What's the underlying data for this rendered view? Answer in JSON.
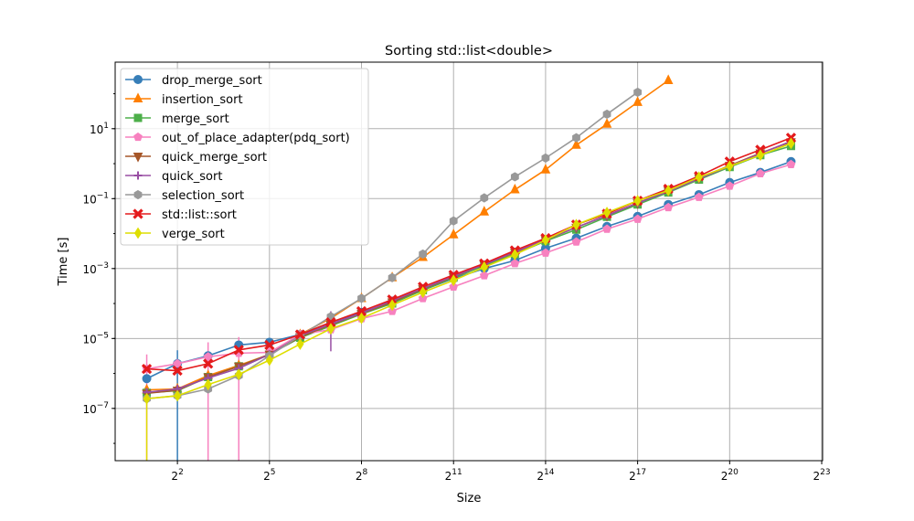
{
  "chart_data": {
    "type": "line",
    "title": "Sorting std::list<double>",
    "xlabel": "Size",
    "ylabel": "Time [s]",
    "x_scale": "log2",
    "y_scale": "log10",
    "xlim": [
      0.98,
      8560000
    ],
    "ylim": [
      3.2e-09,
      800
    ],
    "grid": true,
    "legend_position": "top-left",
    "x_ticks": [
      {
        "base": "2",
        "exp": "2",
        "value": 4
      },
      {
        "base": "2",
        "exp": "5",
        "value": 32
      },
      {
        "base": "2",
        "exp": "8",
        "value": 256
      },
      {
        "base": "2",
        "exp": "11",
        "value": 2048
      },
      {
        "base": "2",
        "exp": "14",
        "value": 16384
      },
      {
        "base": "2",
        "exp": "17",
        "value": 131072
      },
      {
        "base": "2",
        "exp": "20",
        "value": 1048576
      },
      {
        "base": "2",
        "exp": "23",
        "value": 8388608
      }
    ],
    "y_ticks": [
      {
        "base": "10",
        "exp": "−7",
        "value": 1e-07
      },
      {
        "base": "10",
        "exp": "−5",
        "value": 1e-05
      },
      {
        "base": "10",
        "exp": "−3",
        "value": 0.001
      },
      {
        "base": "10",
        "exp": "−1",
        "value": 0.1
      },
      {
        "base": "10",
        "exp": "1",
        "value": 10
      }
    ],
    "x": [
      2,
      4,
      8,
      16,
      32,
      64,
      128,
      256,
      512,
      1024,
      2048,
      4096,
      8192,
      16384,
      32768,
      65536,
      131072,
      262144,
      524288,
      1048576,
      2097152,
      4194304
    ],
    "series": [
      {
        "name": "drop_merge_sort",
        "color": "#377eb8",
        "marker": "circle",
        "values": [
          7.1e-07,
          1.9e-06,
          3.2e-06,
          6.5e-06,
          7.8e-06,
          1.3e-05,
          2.9e-05,
          5.6e-05,
          0.00011,
          0.00024,
          0.00052,
          0.001,
          0.0017,
          0.0038,
          0.0074,
          0.016,
          0.031,
          0.068,
          0.13,
          0.29,
          0.56,
          1.15
        ],
        "errors": [
          {
            "x": 4,
            "lo": 1e-09,
            "hi": 4.6e-06
          }
        ]
      },
      {
        "name": "insertion_sort",
        "color": "#ff7f00",
        "marker": "triangle-up",
        "values": [
          3.4e-07,
          3.6e-07,
          8.7e-07,
          1.7e-06,
          3.5e-06,
          1.3e-05,
          3.8e-05,
          0.00014,
          0.00055,
          0.0021,
          0.0093,
          0.042,
          0.18,
          0.67,
          3.4,
          13.5,
          57,
          240,
          null,
          null,
          null,
          null
        ],
        "errors": []
      },
      {
        "name": "merge_sort",
        "color": "#4daf4a",
        "marker": "square",
        "values": [
          2.8e-07,
          3.2e-07,
          7.9e-07,
          1.6e-06,
          3.5e-06,
          1.05e-05,
          2.3e-05,
          5e-05,
          0.0001,
          0.00024,
          0.00055,
          0.0012,
          0.0026,
          0.0061,
          0.013,
          0.03,
          0.068,
          0.15,
          0.35,
          0.8,
          1.75,
          3.2
        ],
        "errors": []
      },
      {
        "name": "out_of_place_adapter(pdq_sort)",
        "color": "#f781bf",
        "marker": "pentagon",
        "values": [
          1.35e-06,
          1.9e-06,
          3e-06,
          3.8e-06,
          4e-06,
          1.3e-05,
          1.8e-05,
          3.7e-05,
          6e-05,
          0.00014,
          0.0003,
          0.00063,
          0.0014,
          0.0028,
          0.0058,
          0.0135,
          0.026,
          0.056,
          0.11,
          0.23,
          0.52,
          0.95
        ],
        "errors": [
          {
            "x": 2,
            "lo": 1e-09,
            "hi": 3.5e-06
          },
          {
            "x": 8,
            "lo": 1e-09,
            "hi": 7.8e-06
          },
          {
            "x": 16,
            "lo": 1e-09,
            "hi": 1.1e-05
          }
        ]
      },
      {
        "name": "quick_merge_sort",
        "color": "#a65628",
        "marker": "triangle-down",
        "values": [
          2.7e-07,
          3.3e-07,
          7.9e-07,
          1.6e-06,
          3.5e-06,
          1.1e-05,
          2.5e-05,
          5.2e-05,
          0.00011,
          0.00026,
          0.00058,
          0.0013,
          0.0029,
          0.0066,
          0.015,
          0.033,
          0.075,
          0.17,
          0.39,
          0.88,
          2.0,
          4.2
        ],
        "errors": []
      },
      {
        "name": "quick_sort",
        "color": "#984ea3",
        "marker": "plus",
        "values": [
          2.9e-07,
          3.6e-07,
          7.4e-07,
          1.4e-06,
          3.5e-06,
          1.2e-05,
          2.6e-05,
          5.3e-05,
          0.00012,
          0.00027,
          0.0006,
          0.0013,
          0.003,
          0.0068,
          0.015,
          0.033,
          0.075,
          0.16,
          0.37,
          0.85,
          1.95,
          4.4
        ],
        "errors": [
          {
            "x": 128,
            "lo": 4.3e-06,
            "hi": 6e-05
          }
        ]
      },
      {
        "name": "selection_sort",
        "color": "#999999",
        "marker": "hexagon",
        "values": [
          1.9e-07,
          2.3e-07,
          3.6e-07,
          8.7e-07,
          3.2e-06,
          1.2e-05,
          4.2e-05,
          0.00014,
          0.00055,
          0.0026,
          0.023,
          0.105,
          0.42,
          1.45,
          5.5,
          26,
          110,
          null,
          null,
          null,
          null,
          null
        ],
        "errors": []
      },
      {
        "name": "std::list::sort",
        "color": "#e41a1c",
        "marker": "x",
        "values": [
          1.35e-06,
          1.2e-06,
          1.9e-06,
          4.7e-06,
          6.5e-06,
          1.3e-05,
          2.9e-05,
          6e-05,
          0.00013,
          0.0003,
          0.00066,
          0.0014,
          0.0033,
          0.0074,
          0.018,
          0.037,
          0.087,
          0.19,
          0.44,
          1.15,
          2.5,
          5.5
        ],
        "errors": []
      },
      {
        "name": "verge_sort",
        "color": "#dede00",
        "marker": "diamond",
        "values": [
          1.9e-07,
          2.3e-07,
          4.8e-07,
          9.4e-07,
          2.4e-06,
          6.9e-06,
          1.9e-05,
          3.8e-05,
          9e-05,
          0.00021,
          0.00046,
          0.0011,
          0.0025,
          0.0065,
          0.018,
          0.04,
          0.087,
          0.17,
          0.41,
          0.85,
          1.75,
          3.8
        ],
        "errors": [
          {
            "x": 2,
            "lo": 1e-09,
            "hi": 1.9e-07
          }
        ]
      }
    ]
  }
}
